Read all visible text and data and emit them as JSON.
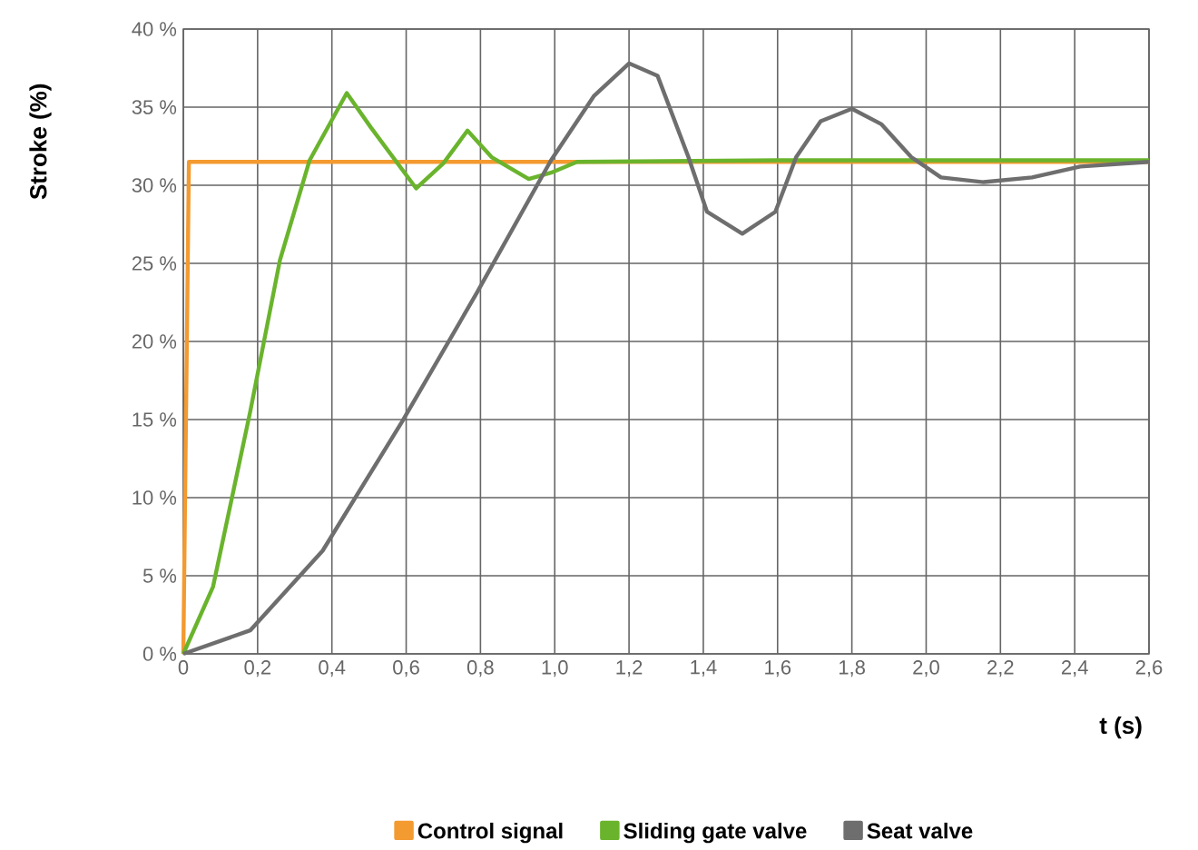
{
  "chart_data": {
    "type": "line",
    "xlabel": "t (s)",
    "ylabel": "Stroke (%)",
    "xlim": [
      0,
      2.6
    ],
    "ylim": [
      0,
      40
    ],
    "xticks": [
      0,
      {
        "value": 0.2,
        "label": "0,2"
      },
      {
        "value": 0.4,
        "label": "0,4"
      },
      {
        "value": 0.6,
        "label": "0,6"
      },
      {
        "value": 0.8,
        "label": "0,8"
      },
      {
        "value": 1.0,
        "label": "1,0"
      },
      {
        "value": 1.2,
        "label": "1,2"
      },
      {
        "value": 1.4,
        "label": "1,4"
      },
      {
        "value": 1.6,
        "label": "1,6"
      },
      {
        "value": 1.8,
        "label": "1,8"
      },
      {
        "value": 2.0,
        "label": "2,0"
      },
      {
        "value": 2.2,
        "label": "2,2"
      },
      {
        "value": 2.4,
        "label": "2,4"
      },
      {
        "value": 2.6,
        "label": "2,6"
      }
    ],
    "yticks": [
      {
        "value": 0,
        "label": "0 %"
      },
      {
        "value": 5,
        "label": "5 %"
      },
      {
        "value": 10,
        "label": "10 %"
      },
      {
        "value": 15,
        "label": "15 %"
      },
      {
        "value": 20,
        "label": "20 %"
      },
      {
        "value": 25,
        "label": "25 %"
      },
      {
        "value": 30,
        "label": "30 %"
      },
      {
        "value": 35,
        "label": "35 %"
      },
      {
        "value": 40,
        "label": "40 %"
      }
    ],
    "grid": true,
    "legend": "bottom",
    "marker": "none",
    "line_style": "solid",
    "series": [
      {
        "name": "Control signal",
        "color": "#f39a30",
        "x": [
          0,
          0.015,
          2.6
        ],
        "values": [
          0,
          31.5,
          31.5
        ]
      },
      {
        "name": "Sliding gate valve",
        "color": "#6ab42d",
        "x": [
          0,
          0.08,
          0.18,
          0.26,
          0.34,
          0.44,
          0.505,
          0.627,
          0.7,
          0.765,
          0.83,
          0.93,
          0.99,
          1.06,
          1.6,
          2.6
        ],
        "values": [
          0,
          4.3,
          15.5,
          25.2,
          31.6,
          35.9,
          33.7,
          29.8,
          31.4,
          33.5,
          31.8,
          30.4,
          30.8,
          31.5,
          31.6,
          31.6
        ]
      },
      {
        "name": "Seat valve",
        "color": "#6e6e6e",
        "x": [
          0,
          0.18,
          0.375,
          0.59,
          0.79,
          0.99,
          1.105,
          1.2,
          1.277,
          1.36,
          1.41,
          1.505,
          1.594,
          1.65,
          1.716,
          1.8,
          1.88,
          1.96,
          2.04,
          2.155,
          2.285,
          2.415,
          2.6
        ],
        "values": [
          0,
          1.5,
          6.6,
          14.9,
          23.1,
          31.6,
          35.7,
          37.8,
          37.0,
          31.8,
          28.3,
          26.9,
          28.3,
          31.8,
          34.1,
          34.9,
          33.9,
          31.8,
          30.5,
          30.2,
          30.5,
          31.2,
          31.5
        ]
      }
    ]
  }
}
